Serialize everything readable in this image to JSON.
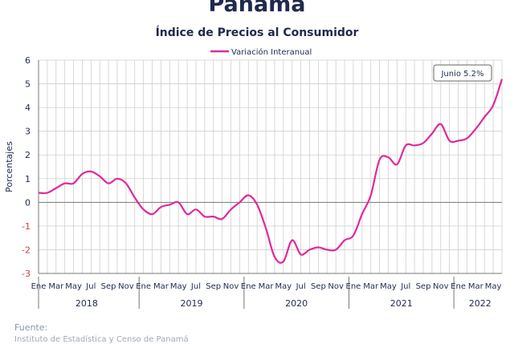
{
  "title": "Panamá",
  "subtitle": "Índice de Precios al Consumidor",
  "source_label": "Fuente:",
  "source_text": "Instituto de Estadística y Censo de Panamá",
  "colors": {
    "series": "#e0299b",
    "grid": "#cfcfcf",
    "axis": "#777777",
    "negative_tick": "#d23b3b",
    "text": "#1d2b4f"
  },
  "chart_data": {
    "type": "line",
    "title": "Índice de Precios al Consumidor",
    "ylabel": "Porcentajes",
    "xlabel": "",
    "ylim": [
      -3,
      6
    ],
    "yticks": [
      6,
      5,
      4,
      3,
      2,
      1,
      0,
      -1,
      -2,
      -3
    ],
    "grid": true,
    "legend": "top-center",
    "month_ticks": [
      "Ene",
      "Mar",
      "May",
      "Jul",
      "Sep",
      "Nov",
      "Ene",
      "Mar",
      "May",
      "Jul",
      "Sep",
      "Nov",
      "Ene",
      "Mar",
      "May",
      "Jul",
      "Sep",
      "Nov",
      "Ene",
      "Mar",
      "May",
      "Jul",
      "Sep",
      "Nov",
      "Ene",
      "Mar",
      "May"
    ],
    "years": [
      {
        "label": "2018",
        "months": 12
      },
      {
        "label": "2019",
        "months": 12
      },
      {
        "label": "2020",
        "months": 12
      },
      {
        "label": "2021",
        "months": 12
      },
      {
        "label": "2022",
        "months": 6
      }
    ],
    "annotation": "Junio 5.2%",
    "series": [
      {
        "name": "Variación Interanual",
        "x": [
          "2018-01",
          "2018-02",
          "2018-03",
          "2018-04",
          "2018-05",
          "2018-06",
          "2018-07",
          "2018-08",
          "2018-09",
          "2018-10",
          "2018-11",
          "2018-12",
          "2019-01",
          "2019-02",
          "2019-03",
          "2019-04",
          "2019-05",
          "2019-06",
          "2019-07",
          "2019-08",
          "2019-09",
          "2019-10",
          "2019-11",
          "2019-12",
          "2020-01",
          "2020-02",
          "2020-03",
          "2020-04",
          "2020-05",
          "2020-06",
          "2020-07",
          "2020-08",
          "2020-09",
          "2020-10",
          "2020-11",
          "2020-12",
          "2021-01",
          "2021-02",
          "2021-03",
          "2021-04",
          "2021-05",
          "2021-06",
          "2021-07",
          "2021-08",
          "2021-09",
          "2021-10",
          "2021-11",
          "2021-12",
          "2022-01",
          "2022-02",
          "2022-03",
          "2022-04",
          "2022-05",
          "2022-06"
        ],
        "values": [
          0.4,
          0.4,
          0.6,
          0.8,
          0.8,
          1.2,
          1.3,
          1.1,
          0.8,
          1.0,
          0.8,
          0.2,
          -0.3,
          -0.5,
          -0.2,
          -0.1,
          0.0,
          -0.5,
          -0.3,
          -0.6,
          -0.6,
          -0.7,
          -0.3,
          0.0,
          0.3,
          -0.1,
          -1.1,
          -2.3,
          -2.5,
          -1.6,
          -2.2,
          -2.0,
          -1.9,
          -2.0,
          -2.0,
          -1.6,
          -1.4,
          -0.5,
          0.3,
          1.8,
          1.9,
          1.6,
          2.4,
          2.4,
          2.5,
          2.9,
          3.3,
          2.6,
          2.6,
          2.7,
          3.1,
          3.6,
          4.1,
          5.2
        ]
      }
    ]
  }
}
